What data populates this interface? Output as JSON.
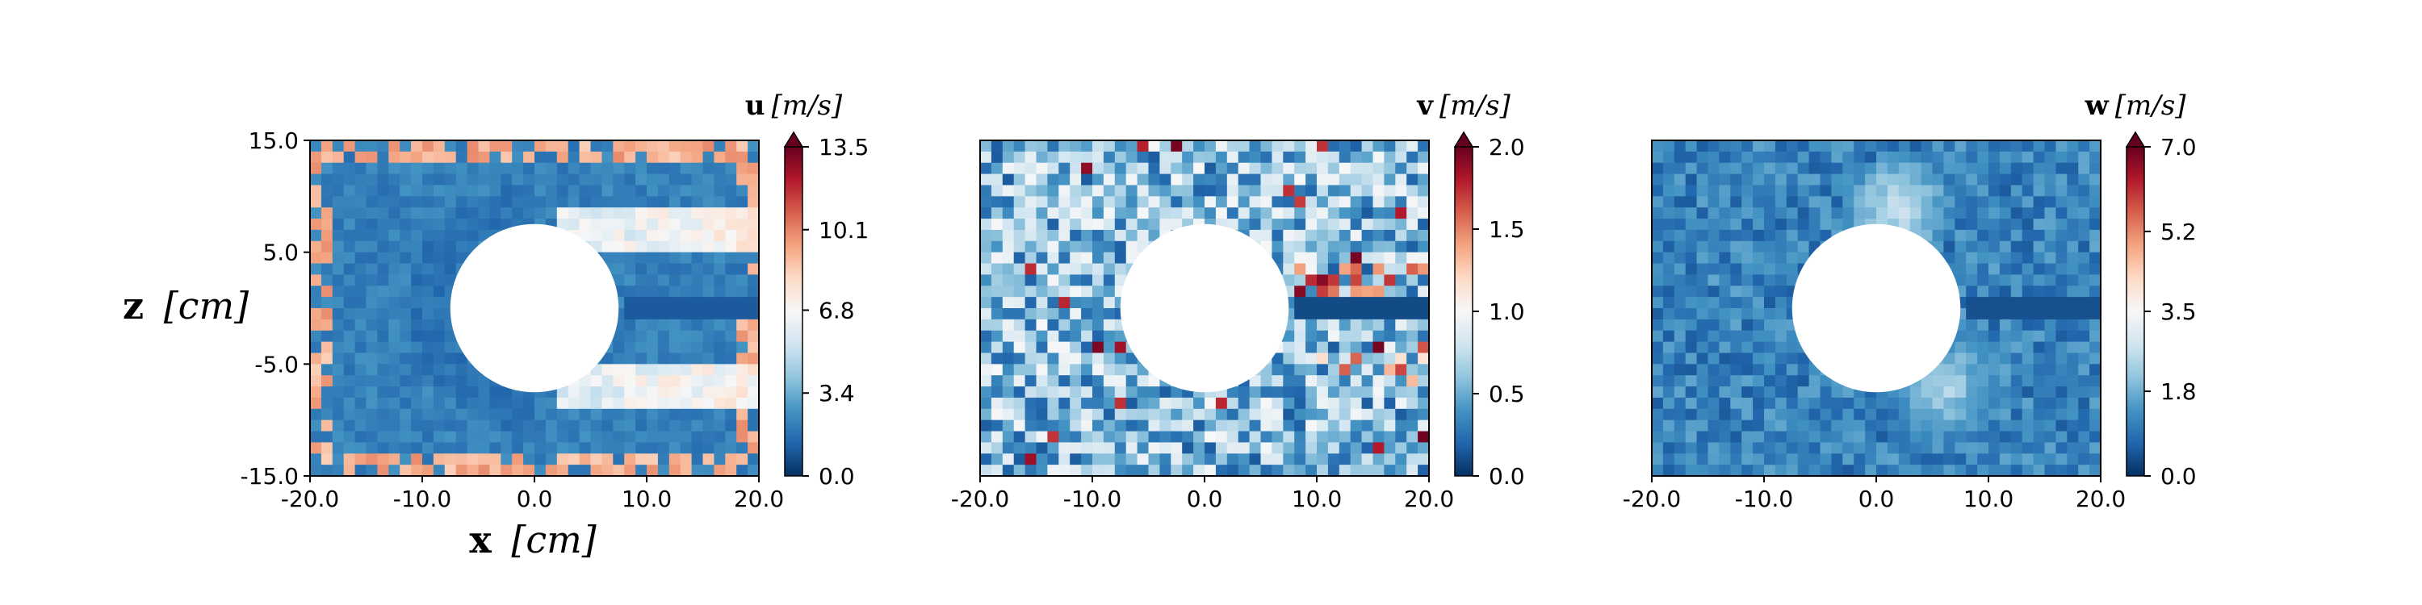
{
  "figure": {
    "xlabel_bold": "x",
    "xlabel_unit": "[cm]",
    "ylabel_bold": "z",
    "ylabel_unit": "[cm]"
  },
  "chart_data": [
    {
      "type": "heatmap",
      "title": "",
      "xlabel": "x [cm]",
      "ylabel": "z [cm]",
      "xlim": [
        -20,
        20
      ],
      "ylim": [
        -15,
        15
      ],
      "xticks": [
        "-20.0",
        "-10.0",
        "0.0",
        "10.0",
        "20.0"
      ],
      "yticks": [
        "15.0",
        "5.0",
        "-5.0",
        "-15.0"
      ],
      "obstacle": {
        "shape": "circle",
        "center": [
          0,
          0
        ],
        "radius": 7.5
      },
      "colorbar": {
        "label_bold": "u",
        "label_unit": "[m/s]",
        "min": 0.0,
        "max": 13.5,
        "ticks": [
          "0.0",
          "3.4",
          "6.8",
          "10.1",
          "13.5"
        ],
        "colormap": "RdBu_r",
        "extend": "max"
      },
      "grid": {
        "nx": 40,
        "nz": 30,
        "pattern": "u"
      }
    },
    {
      "type": "heatmap",
      "title": "",
      "xlim": [
        -20,
        20
      ],
      "ylim": [
        -15,
        15
      ],
      "xticks": [
        "-20.0",
        "-10.0",
        "0.0",
        "10.0",
        "20.0"
      ],
      "obstacle": {
        "shape": "circle",
        "center": [
          0,
          0
        ],
        "radius": 7.5
      },
      "colorbar": {
        "label_bold": "v",
        "label_unit": "[m/s]",
        "min": 0.0,
        "max": 2.0,
        "ticks": [
          "0.0",
          "0.5",
          "1.0",
          "1.5",
          "2.0"
        ],
        "colormap": "RdBu_r",
        "extend": "max"
      },
      "grid": {
        "nx": 40,
        "nz": 30,
        "pattern": "v"
      }
    },
    {
      "type": "heatmap",
      "title": "",
      "xlim": [
        -20,
        20
      ],
      "ylim": [
        -15,
        15
      ],
      "xticks": [
        "-20.0",
        "-10.0",
        "0.0",
        "10.0",
        "20.0"
      ],
      "obstacle": {
        "shape": "circle",
        "center": [
          0,
          0
        ],
        "radius": 7.5
      },
      "colorbar": {
        "label_bold": "w",
        "label_unit": "[m/s]",
        "min": 0.0,
        "max": 7.0,
        "ticks": [
          "0.0",
          "1.8",
          "3.5",
          "5.2",
          "7.0"
        ],
        "colormap": "RdBu_r",
        "extend": "max"
      },
      "grid": {
        "nx": 40,
        "nz": 30,
        "pattern": "w"
      }
    }
  ]
}
